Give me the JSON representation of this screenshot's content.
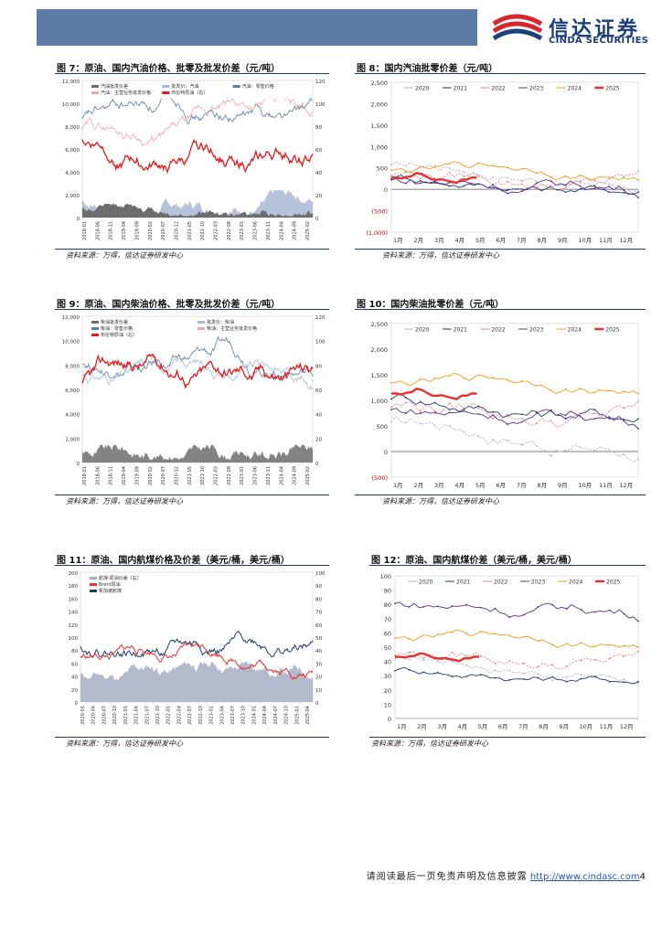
{
  "header": {
    "logo_cn": "信达证券",
    "logo_en": "CINDA SECURITIES",
    "colors": {
      "band": "#5b7da6",
      "brand": "#1c3f7a",
      "logo_red": "#d7262e"
    }
  },
  "source_text": "资料来源：万得，信达证券研发中心",
  "footer": {
    "disclaimer": "请阅读最后一页免责声明及信息披露",
    "url": "http://www.cindasc.com",
    "page_number": "4"
  },
  "figures": {
    "fig7": {
      "title": "图 7：原油、国内汽油价格、批零及批发价差（元/吨）",
      "chart_data": {
        "type": "area+line",
        "legend": [
          "汽油批发价差",
          "批发价：汽油",
          "汽油：零售价格",
          "汽油：主营业务批发价格",
          "布伦特原油（右）"
        ],
        "y_ticks": [
          "12,000",
          "10,000",
          "8,000",
          "6,000",
          "4,000",
          "2,000",
          "0"
        ],
        "y2_ticks": [
          "120",
          "100",
          "80",
          "60",
          "40",
          "20",
          "0"
        ],
        "x_ticks": [
          "2018-01",
          "2018-06",
          "2018-11",
          "2019-04",
          "2019-09",
          "2020-02",
          "2020-07",
          "2020-12",
          "2021-05",
          "2021-10",
          "2022-03",
          "2022-08",
          "2023-01",
          "2023-06",
          "2023-11",
          "2024-04",
          "2024-09",
          "2025-02"
        ],
        "colors": [
          "#6d6d6d",
          "#a9b9d6",
          "#5a7fa8",
          "#f0a6a6",
          "#e01b1b"
        ]
      }
    },
    "fig8": {
      "title": "图 8：国内汽油批零价差（元/吨）",
      "chart_data": {
        "type": "line",
        "series_names": [
          "2020",
          "2021",
          "2022",
          "2023",
          "2024",
          "2025"
        ],
        "series_colors": [
          "#b0b4c4",
          "#1f3b73",
          "#f07d8c",
          "#5b2c91",
          "#f29b1c",
          "#e8302e"
        ],
        "y_ticks": [
          "2,500",
          "2,000",
          "1,500",
          "1,000",
          "500",
          "0",
          "(500)",
          "(1,000)"
        ],
        "x_ticks": [
          "1月",
          "2月",
          "3月",
          "4月",
          "5月",
          "6月",
          "7月",
          "8月",
          "9月",
          "10月",
          "11月",
          "12月"
        ]
      }
    },
    "fig9": {
      "title": "图 9：原油、国内柴油价格、批零及批发价差（元/吨）",
      "chart_data": {
        "type": "area+line",
        "legend": [
          "柴油批发价差",
          "批发价：柴油",
          "柴油：零售价格",
          "柴油：主营业务批发价格",
          "布伦特原油（右）"
        ],
        "y_ticks": [
          "12,000",
          "10,000",
          "8,000",
          "6,000",
          "4,000",
          "2,000",
          "0"
        ],
        "y2_ticks": [
          "120",
          "100",
          "80",
          "60",
          "40",
          "20",
          "0"
        ],
        "x_ticks": [
          "2018-01",
          "2018-06",
          "2018-11",
          "2019-04",
          "2019-09",
          "2020-02",
          "2020-07",
          "2020-12",
          "2021-05",
          "2021-10",
          "2022-03",
          "2022-08",
          "2023-01",
          "2023-06",
          "2023-11",
          "2024-04",
          "2024-09",
          "2025-02"
        ],
        "colors": [
          "#6d6d6d",
          "#a9b9d6",
          "#5a7fa8",
          "#f0a6a6",
          "#e01b1b"
        ]
      }
    },
    "fig10": {
      "title": "图 10：国内柴油批零价差（元/吨）",
      "chart_data": {
        "type": "line",
        "series_names": [
          "2020",
          "2021",
          "2022",
          "2023",
          "2024",
          "2025"
        ],
        "series_colors": [
          "#b0b4c4",
          "#1f3b73",
          "#f07d8c",
          "#5b2c91",
          "#f29b1c",
          "#e8302e"
        ],
        "y_ticks": [
          "2,500",
          "2,000",
          "1,500",
          "1,000",
          "500",
          "0",
          "(500)"
        ],
        "x_ticks": [
          "1月",
          "2月",
          "3月",
          "4月",
          "5月",
          "6月",
          "7月",
          "8月",
          "9月",
          "10月",
          "11月",
          "12月"
        ]
      }
    },
    "fig11": {
      "title": "图 11：原油、国内航煤价格及价差（美元/桶，美元/桶）",
      "chart_data": {
        "type": "area+line",
        "legend": [
          "航煤-原油价差（右）",
          "Brent原油",
          "新加坡航煤"
        ],
        "y_ticks": [
          "200",
          "180",
          "160",
          "140",
          "120",
          "100",
          "80",
          "60",
          "40",
          "20",
          "0"
        ],
        "y2_ticks": [
          "100",
          "90",
          "80",
          "70",
          "60",
          "50",
          "40",
          "30",
          "20",
          "10",
          "0"
        ],
        "x_ticks": [
          "2020-01",
          "2020-04",
          "2020-07",
          "2020-10",
          "2021-01",
          "2021-04",
          "2021-07",
          "2021-10",
          "2022-01",
          "2022-04",
          "2022-07",
          "2022-10",
          "2023-01",
          "2023-04",
          "2023-07",
          "2023-10",
          "2024-01",
          "2024-04",
          "2024-07",
          "2024-10",
          "2025-01",
          "2025-04"
        ],
        "colors": [
          "#a4aec2",
          "#e8302e",
          "#1f3b73"
        ]
      }
    },
    "fig12": {
      "title": "图 12：原油、国内航煤价差（美元/桶，美元/桶）",
      "chart_data": {
        "type": "line",
        "series_names": [
          "2020",
          "2021",
          "2022",
          "2023",
          "2024",
          "2025"
        ],
        "series_colors": [
          "#b0b4c4",
          "#1f3b73",
          "#f07d8c",
          "#5b2c91",
          "#f29b1c",
          "#e8302e"
        ],
        "y_ticks": [
          "100",
          "90",
          "80",
          "70",
          "60",
          "50",
          "40",
          "30",
          "20",
          "10",
          "0"
        ],
        "x_ticks": [
          "1月",
          "2月",
          "3月",
          "4月",
          "5月",
          "6月",
          "7月",
          "8月",
          "9月",
          "10月",
          "11月",
          "12月"
        ]
      }
    }
  }
}
